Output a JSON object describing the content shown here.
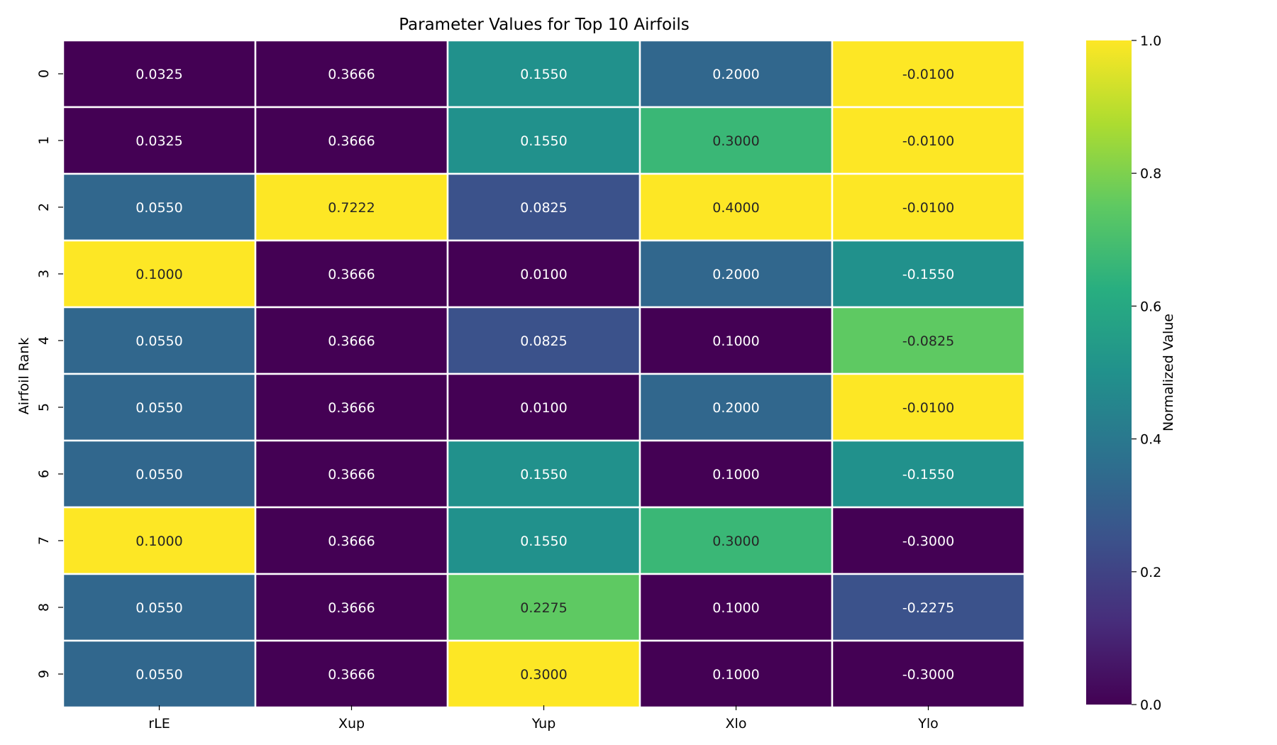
{
  "chart_data": {
    "type": "heatmap",
    "title": "Parameter Values for Top 10 Airfoils",
    "xlabel": "",
    "ylabel": "Airfoil Rank",
    "columns": [
      "rLE",
      "Xup",
      "Yup",
      "Xlo",
      "Ylo"
    ],
    "rows": [
      "0",
      "1",
      "2",
      "3",
      "4",
      "5",
      "6",
      "7",
      "8",
      "9"
    ],
    "values": [
      [
        "0.0325",
        "0.3666",
        "0.1550",
        "0.2000",
        "-0.0100"
      ],
      [
        "0.0325",
        "0.3666",
        "0.1550",
        "0.3000",
        "-0.0100"
      ],
      [
        "0.0550",
        "0.7222",
        "0.0825",
        "0.4000",
        "-0.0100"
      ],
      [
        "0.1000",
        "0.3666",
        "0.0100",
        "0.2000",
        "-0.1550"
      ],
      [
        "0.0550",
        "0.3666",
        "0.0825",
        "0.1000",
        "-0.0825"
      ],
      [
        "0.0550",
        "0.3666",
        "0.0100",
        "0.2000",
        "-0.0100"
      ],
      [
        "0.0550",
        "0.3666",
        "0.1550",
        "0.1000",
        "-0.1550"
      ],
      [
        "0.1000",
        "0.3666",
        "0.1550",
        "0.3000",
        "-0.3000"
      ],
      [
        "0.0550",
        "0.3666",
        "0.2275",
        "0.1000",
        "-0.2275"
      ],
      [
        "0.0550",
        "0.3666",
        "0.3000",
        "0.1000",
        "-0.3000"
      ]
    ],
    "normalized": [
      [
        0.0,
        0.0,
        0.5,
        0.333,
        1.0
      ],
      [
        0.0,
        0.0,
        0.5,
        0.667,
        1.0
      ],
      [
        0.333,
        1.0,
        0.25,
        1.0,
        1.0
      ],
      [
        1.0,
        0.0,
        0.0,
        0.333,
        0.5
      ],
      [
        0.333,
        0.0,
        0.25,
        0.0,
        0.75
      ],
      [
        0.333,
        0.0,
        0.0,
        0.333,
        1.0
      ],
      [
        0.333,
        0.0,
        0.5,
        0.0,
        0.5
      ],
      [
        1.0,
        0.0,
        0.5,
        0.667,
        0.0
      ],
      [
        0.333,
        0.0,
        0.75,
        0.0,
        0.25
      ],
      [
        0.333,
        0.0,
        1.0,
        0.0,
        0.0
      ]
    ],
    "colorbar": {
      "label": "Normalized Value",
      "ticks": [
        "0.0",
        "0.2",
        "0.4",
        "0.6",
        "0.8",
        "1.0"
      ],
      "range": [
        0,
        1
      ],
      "colormap": "viridis"
    },
    "grid": false
  }
}
